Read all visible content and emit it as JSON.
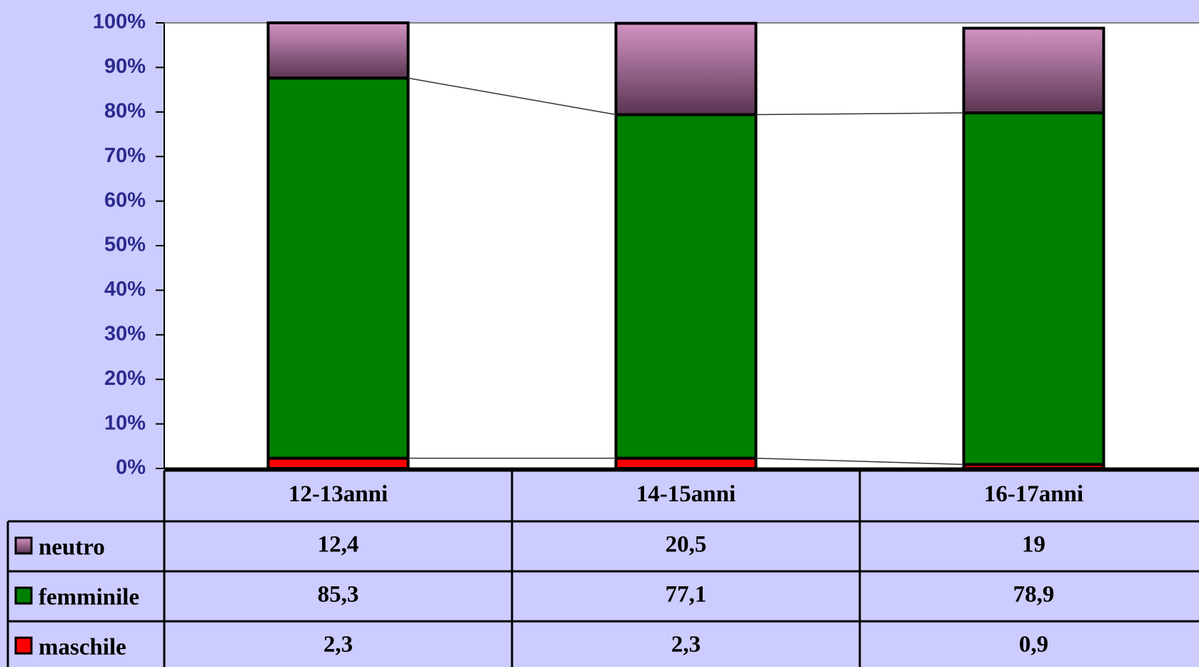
{
  "chart_data": {
    "type": "bar",
    "stacked": true,
    "categories": [
      "12-13anni",
      "14-15anni",
      "16-17anni"
    ],
    "series": [
      {
        "name": "maschile",
        "color": "#ff0000",
        "values": [
          2.3,
          2.3,
          0.9
        ],
        "value_labels": [
          "2,3",
          "2,3",
          "0,9"
        ]
      },
      {
        "name": "femminile",
        "color": "#008000",
        "values": [
          85.3,
          77.1,
          78.9
        ],
        "value_labels": [
          "85,3",
          "77,1",
          "78,9"
        ]
      },
      {
        "name": "neutro",
        "color": "#d494c4",
        "values": [
          12.4,
          20.5,
          19
        ],
        "value_labels": [
          "12,4",
          "20,5",
          "19"
        ]
      }
    ],
    "ylim": [
      0,
      100
    ],
    "yticks": [
      {
        "value": 0,
        "label": "0%"
      },
      {
        "value": 10,
        "label": "10%"
      },
      {
        "value": 20,
        "label": "20%"
      },
      {
        "value": 30,
        "label": "30%"
      },
      {
        "value": 40,
        "label": "40%"
      },
      {
        "value": 50,
        "label": "50%"
      },
      {
        "value": 60,
        "label": "60%"
      },
      {
        "value": 70,
        "label": "70%"
      },
      {
        "value": 80,
        "label": "80%"
      },
      {
        "value": 90,
        "label": "90%"
      },
      {
        "value": 100,
        "label": "100%"
      }
    ],
    "series_lines": true
  }
}
